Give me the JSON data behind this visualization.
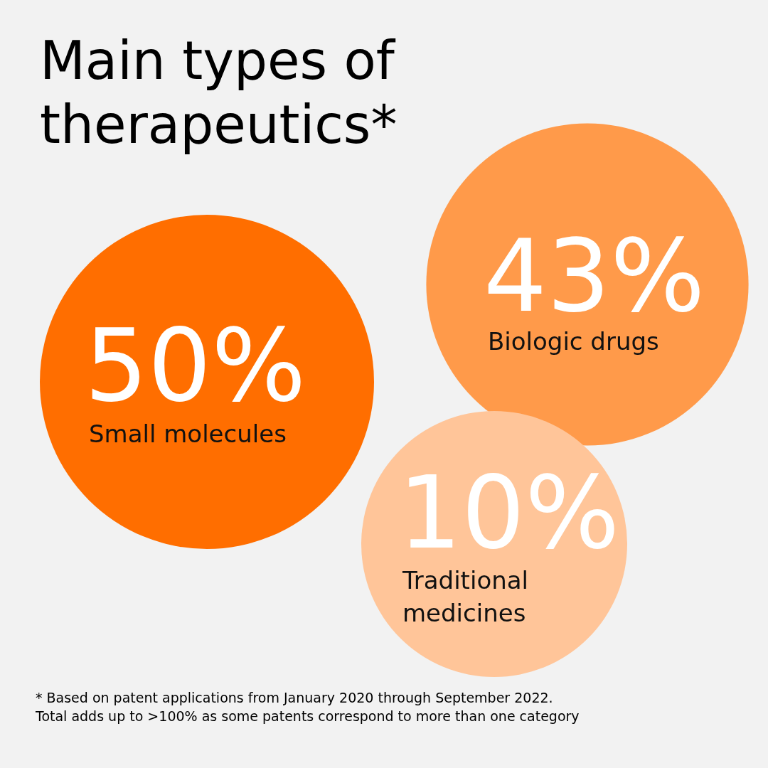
{
  "chart_data": {
    "type": "other",
    "title": "Main types of therapeutics*",
    "categories": [
      "Small molecules",
      "Biologic drugs",
      "Traditional medicines"
    ],
    "values": [
      50,
      43,
      10
    ],
    "value_labels": [
      "50%",
      "43%",
      "10%"
    ],
    "colors": [
      "#ff6e00",
      "#ff9a4a",
      "#ffc599"
    ],
    "annotations": [
      "* Based on patent applications from January 2020 through September 2022.",
      "Total adds up to >100% as some patents correspond to more than one category"
    ]
  }
}
